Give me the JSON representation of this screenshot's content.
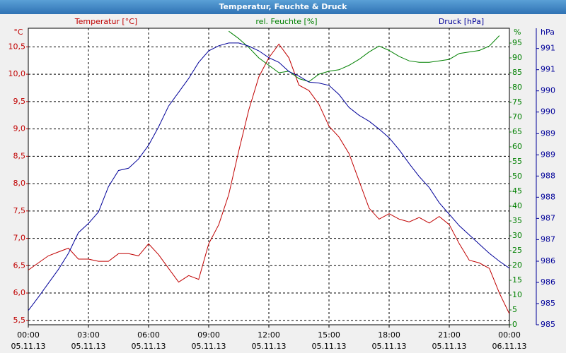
{
  "chart_data": {
    "type": "line",
    "title": "Temperatur, Feuchte & Druck",
    "x": [
      0,
      0.5,
      1,
      1.5,
      2,
      2.5,
      3,
      3.5,
      4,
      4.5,
      5,
      5.5,
      6,
      6.5,
      7,
      7.5,
      8,
      8.5,
      9,
      9.5,
      10,
      10.5,
      11,
      11.5,
      12,
      12.5,
      13,
      13.5,
      14,
      14.5,
      15,
      15.5,
      16,
      16.5,
      17,
      17.5,
      18,
      18.5,
      19,
      19.5,
      20,
      20.5,
      21,
      21.5,
      22,
      22.5,
      23,
      23.5,
      24
    ],
    "xlim": [
      0,
      24
    ],
    "xticks": [
      {
        "value": 0,
        "label": "00:00 05.11.13"
      },
      {
        "value": 3,
        "label": "03:00 05.11.13"
      },
      {
        "value": 6,
        "label": "06:00 05.11.13"
      },
      {
        "value": 9,
        "label": "09:00 05.11.13"
      },
      {
        "value": 12,
        "label": "12:00 05.11.13"
      },
      {
        "value": 15,
        "label": "15:00 05.11.13"
      },
      {
        "value": 18,
        "label": "18:00 05.11.13"
      },
      {
        "value": 21,
        "label": "21:00 05.11.13"
      },
      {
        "value": 24,
        "label": "00:00 06.11.13"
      }
    ],
    "ylabel": "°C",
    "ylim": [
      5.42,
      10.84
    ],
    "yticks": [
      {
        "value": 5.5,
        "label": "5,5"
      },
      {
        "value": 6,
        "label": "6,0"
      },
      {
        "value": 6.5,
        "label": "6,5"
      },
      {
        "value": 7,
        "label": "7,0"
      },
      {
        "value": 7.5,
        "label": "7,5"
      },
      {
        "value": 8,
        "label": "8,0"
      },
      {
        "value": 8.5,
        "label": "8,5"
      },
      {
        "value": 9,
        "label": "9,0"
      },
      {
        "value": 9.5,
        "label": "9,5"
      },
      {
        "value": 10,
        "label": "10,0"
      },
      {
        "value": 10.5,
        "label": "10,5"
      }
    ],
    "y2label": "%",
    "y2lim": [
      0,
      100
    ],
    "y2ticks": [
      0,
      5,
      10,
      15,
      20,
      25,
      30,
      35,
      40,
      45,
      50,
      55,
      60,
      65,
      70,
      75,
      80,
      85,
      90,
      95
    ],
    "y3label": "hPa",
    "y3lim": [
      985,
      991.44
    ],
    "y3ticks": [
      {
        "value": 985,
        "label": "985"
      },
      {
        "value": 985.46,
        "label": "985"
      },
      {
        "value": 985.92,
        "label": "986"
      },
      {
        "value": 986.38,
        "label": "986"
      },
      {
        "value": 986.85,
        "label": "987"
      },
      {
        "value": 987.31,
        "label": "987"
      },
      {
        "value": 987.77,
        "label": "988"
      },
      {
        "value": 988.23,
        "label": "988"
      },
      {
        "value": 988.69,
        "label": "989"
      },
      {
        "value": 989.15,
        "label": "989"
      },
      {
        "value": 989.62,
        "label": "990"
      },
      {
        "value": 990.08,
        "label": "990"
      },
      {
        "value": 990.54,
        "label": "991"
      },
      {
        "value": 991,
        "label": "991"
      }
    ],
    "grid": true,
    "series": [
      {
        "name": "Temperatur [°C]",
        "color": "#c00000",
        "axis": "y",
        "values": [
          6.42,
          6.55,
          6.68,
          6.75,
          6.82,
          6.62,
          6.62,
          6.58,
          6.58,
          6.72,
          6.72,
          6.68,
          6.9,
          6.7,
          6.45,
          6.2,
          6.32,
          6.25,
          6.9,
          7.25,
          7.8,
          8.6,
          9.35,
          9.95,
          10.3,
          10.55,
          10.3,
          9.8,
          9.7,
          9.45,
          9.05,
          8.85,
          8.55,
          8.05,
          7.55,
          7.35,
          7.45,
          7.35,
          7.3,
          7.38,
          7.28,
          7.4,
          7.25,
          6.9,
          6.6,
          6.55,
          6.45,
          6,
          5.62
        ]
      },
      {
        "name": "rel. Feuchte [%]",
        "color": "#008000",
        "axis": "y2",
        "values": [
          null,
          null,
          null,
          null,
          null,
          null,
          null,
          null,
          null,
          null,
          null,
          null,
          null,
          null,
          null,
          null,
          null,
          null,
          null,
          null,
          99,
          96.5,
          93.5,
          90,
          87.5,
          85,
          85.5,
          83,
          82,
          84.5,
          85.5,
          86,
          87.5,
          89.5,
          92,
          94,
          92.5,
          90.5,
          89,
          88.5,
          88.5,
          89,
          89.5,
          91.5,
          92,
          92.5,
          94,
          97.5,
          null
        ]
      },
      {
        "name": "Druck [hPa]",
        "color": "#000099",
        "axis": "y3",
        "values": [
          985.31,
          985.6,
          985.9,
          986.2,
          986.55,
          987,
          987.2,
          987.45,
          988,
          988.35,
          988.4,
          988.6,
          988.9,
          989.3,
          989.75,
          990.05,
          990.35,
          990.7,
          990.95,
          991.06,
          991.12,
          991.12,
          991.05,
          990.95,
          990.8,
          990.7,
          990.5,
          990.4,
          990.27,
          990.25,
          990.2,
          990,
          989.72,
          989.55,
          989.42,
          989.25,
          989.06,
          988.8,
          988.5,
          988.22,
          987.98,
          987.65,
          987.4,
          987.15,
          986.95,
          986.75,
          986.55,
          986.38,
          986.23
        ]
      }
    ]
  }
}
